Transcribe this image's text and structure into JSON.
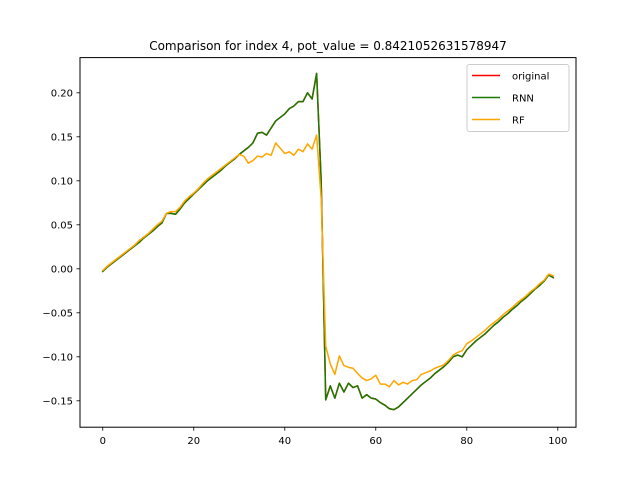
{
  "chart_data": {
    "type": "line",
    "title": "Comparison for index 4, pot_value = 0.8421052631578947",
    "xlabel": "",
    "ylabel": "",
    "xlim": [
      -5,
      104
    ],
    "ylim": [
      -0.18,
      0.24
    ],
    "xticks": [
      0,
      20,
      40,
      60,
      80,
      100
    ],
    "yticks": [
      -0.15,
      -0.1,
      -0.05,
      0.0,
      0.05,
      0.1,
      0.15,
      0.2
    ],
    "xtick_labels": [
      "0",
      "20",
      "40",
      "60",
      "80",
      "100"
    ],
    "ytick_labels": [
      "−0.15",
      "−0.10",
      "−0.05",
      "0.00",
      "0.05",
      "0.10",
      "0.15",
      "0.20"
    ],
    "grid": false,
    "legend_position": "top-right",
    "series": [
      {
        "name": "original",
        "color": "#ff0000",
        "x": [
          0,
          1,
          2,
          3,
          4,
          5,
          6,
          7,
          8,
          9,
          10,
          11,
          12,
          13,
          14,
          15,
          16,
          17,
          18,
          19,
          20,
          21,
          22,
          23,
          24,
          25,
          26,
          27,
          28,
          29,
          30,
          31,
          32,
          33,
          34,
          35,
          36,
          37,
          38,
          39,
          40,
          41,
          42,
          43,
          44,
          45,
          46,
          47,
          48,
          49,
          50,
          51,
          52,
          53,
          54,
          55,
          56,
          57,
          58,
          59,
          60,
          61,
          62,
          63,
          64,
          65,
          66,
          67,
          68,
          69,
          70,
          71,
          72,
          73,
          74,
          75,
          76,
          77,
          78,
          79,
          80,
          81,
          82,
          83,
          84,
          85,
          86,
          87,
          88,
          89,
          90,
          91,
          92,
          93,
          94,
          95,
          96,
          97,
          98,
          99
        ],
        "y": [
          -0.003,
          0.002,
          0.006,
          0.01,
          0.014,
          0.018,
          0.022,
          0.026,
          0.03,
          0.035,
          0.039,
          0.043,
          0.048,
          0.052,
          0.063,
          0.063,
          0.062,
          0.068,
          0.075,
          0.08,
          0.085,
          0.09,
          0.095,
          0.1,
          0.104,
          0.108,
          0.112,
          0.117,
          0.121,
          0.125,
          0.13,
          0.134,
          0.138,
          0.143,
          0.154,
          0.155,
          0.152,
          0.16,
          0.168,
          0.172,
          0.176,
          0.182,
          0.185,
          0.19,
          0.19,
          0.2,
          0.193,
          0.222,
          0.1,
          -0.149,
          -0.133,
          -0.147,
          -0.13,
          -0.14,
          -0.13,
          -0.135,
          -0.133,
          -0.147,
          -0.143,
          -0.147,
          -0.148,
          -0.152,
          -0.155,
          -0.159,
          -0.16,
          -0.157,
          -0.152,
          -0.147,
          -0.142,
          -0.137,
          -0.132,
          -0.128,
          -0.124,
          -0.119,
          -0.115,
          -0.111,
          -0.106,
          -0.1,
          -0.098,
          -0.1,
          -0.092,
          -0.087,
          -0.082,
          -0.078,
          -0.074,
          -0.069,
          -0.064,
          -0.06,
          -0.055,
          -0.051,
          -0.046,
          -0.042,
          -0.037,
          -0.033,
          -0.028,
          -0.023,
          -0.019,
          -0.014,
          -0.007,
          -0.01
        ]
      },
      {
        "name": "RNN",
        "color": "#1a7a00",
        "x": [
          0,
          1,
          2,
          3,
          4,
          5,
          6,
          7,
          8,
          9,
          10,
          11,
          12,
          13,
          14,
          15,
          16,
          17,
          18,
          19,
          20,
          21,
          22,
          23,
          24,
          25,
          26,
          27,
          28,
          29,
          30,
          31,
          32,
          33,
          34,
          35,
          36,
          37,
          38,
          39,
          40,
          41,
          42,
          43,
          44,
          45,
          46,
          47,
          48,
          49,
          50,
          51,
          52,
          53,
          54,
          55,
          56,
          57,
          58,
          59,
          60,
          61,
          62,
          63,
          64,
          65,
          66,
          67,
          68,
          69,
          70,
          71,
          72,
          73,
          74,
          75,
          76,
          77,
          78,
          79,
          80,
          81,
          82,
          83,
          84,
          85,
          86,
          87,
          88,
          89,
          90,
          91,
          92,
          93,
          94,
          95,
          96,
          97,
          98,
          99
        ],
        "y": [
          -0.003,
          0.002,
          0.006,
          0.01,
          0.014,
          0.018,
          0.022,
          0.026,
          0.03,
          0.035,
          0.039,
          0.043,
          0.048,
          0.052,
          0.063,
          0.063,
          0.062,
          0.068,
          0.075,
          0.08,
          0.085,
          0.09,
          0.095,
          0.1,
          0.104,
          0.108,
          0.112,
          0.117,
          0.121,
          0.125,
          0.13,
          0.134,
          0.138,
          0.143,
          0.154,
          0.155,
          0.152,
          0.16,
          0.168,
          0.172,
          0.176,
          0.182,
          0.185,
          0.19,
          0.19,
          0.2,
          0.193,
          0.222,
          0.1,
          -0.149,
          -0.133,
          -0.147,
          -0.13,
          -0.14,
          -0.13,
          -0.135,
          -0.133,
          -0.147,
          -0.143,
          -0.147,
          -0.148,
          -0.152,
          -0.155,
          -0.159,
          -0.16,
          -0.157,
          -0.152,
          -0.147,
          -0.142,
          -0.137,
          -0.132,
          -0.128,
          -0.124,
          -0.119,
          -0.115,
          -0.111,
          -0.106,
          -0.1,
          -0.098,
          -0.1,
          -0.092,
          -0.087,
          -0.082,
          -0.078,
          -0.074,
          -0.069,
          -0.064,
          -0.06,
          -0.055,
          -0.051,
          -0.046,
          -0.042,
          -0.037,
          -0.033,
          -0.028,
          -0.023,
          -0.019,
          -0.014,
          -0.007,
          -0.01
        ]
      },
      {
        "name": "RF",
        "color": "#ffa500",
        "x": [
          0,
          1,
          2,
          3,
          4,
          5,
          6,
          7,
          8,
          9,
          10,
          11,
          12,
          13,
          14,
          15,
          16,
          17,
          18,
          19,
          20,
          21,
          22,
          23,
          24,
          25,
          26,
          27,
          28,
          29,
          30,
          31,
          32,
          33,
          34,
          35,
          36,
          37,
          38,
          39,
          40,
          41,
          42,
          43,
          44,
          45,
          46,
          47,
          48,
          49,
          50,
          51,
          52,
          53,
          54,
          55,
          56,
          57,
          58,
          59,
          60,
          61,
          62,
          63,
          64,
          65,
          66,
          67,
          68,
          69,
          70,
          71,
          72,
          73,
          74,
          75,
          76,
          77,
          78,
          79,
          80,
          81,
          82,
          83,
          84,
          85,
          86,
          87,
          88,
          89,
          90,
          91,
          92,
          93,
          94,
          95,
          96,
          97,
          98,
          99
        ],
        "y": [
          -0.002,
          0.003,
          0.007,
          0.011,
          0.015,
          0.019,
          0.023,
          0.027,
          0.032,
          0.036,
          0.04,
          0.045,
          0.05,
          0.054,
          0.063,
          0.065,
          0.065,
          0.07,
          0.077,
          0.082,
          0.086,
          0.091,
          0.097,
          0.102,
          0.106,
          0.11,
          0.114,
          0.118,
          0.122,
          0.126,
          0.13,
          0.128,
          0.12,
          0.123,
          0.128,
          0.127,
          0.131,
          0.129,
          0.143,
          0.137,
          0.131,
          0.133,
          0.129,
          0.136,
          0.133,
          0.142,
          0.136,
          0.152,
          0.08,
          -0.088,
          -0.108,
          -0.12,
          -0.099,
          -0.11,
          -0.112,
          -0.113,
          -0.119,
          -0.124,
          -0.127,
          -0.125,
          -0.121,
          -0.131,
          -0.131,
          -0.134,
          -0.127,
          -0.132,
          -0.129,
          -0.131,
          -0.127,
          -0.126,
          -0.12,
          -0.118,
          -0.116,
          -0.113,
          -0.111,
          -0.109,
          -0.104,
          -0.098,
          -0.095,
          -0.093,
          -0.085,
          -0.082,
          -0.078,
          -0.074,
          -0.07,
          -0.065,
          -0.061,
          -0.057,
          -0.052,
          -0.048,
          -0.044,
          -0.039,
          -0.035,
          -0.031,
          -0.026,
          -0.022,
          -0.017,
          -0.013,
          -0.006,
          -0.008
        ]
      }
    ]
  }
}
